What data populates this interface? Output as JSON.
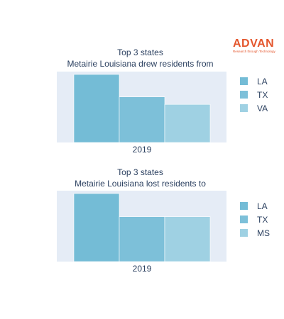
{
  "logo": {
    "text": "ADVAN",
    "tagline": "Research through Technology"
  },
  "chart_data": [
    {
      "type": "bar",
      "title": "Top 3 states",
      "subtitle": "Metairie Louisiana drew residents from",
      "categories": [
        "2019"
      ],
      "series": [
        {
          "name": "LA",
          "values": [
            100
          ],
          "color": "#74bcd6"
        },
        {
          "name": "TX",
          "values": [
            67
          ],
          "color": "#7dc0d9"
        },
        {
          "name": "VA",
          "values": [
            56
          ],
          "color": "#9fd1e3"
        }
      ],
      "legend_position": "right",
      "grid": false
    },
    {
      "type": "bar",
      "title": "Top 3 states",
      "subtitle": "Metairie Louisiana lost residents to",
      "categories": [
        "2019"
      ],
      "series": [
        {
          "name": "LA",
          "values": [
            100
          ],
          "color": "#74bcd6"
        },
        {
          "name": "TX",
          "values": [
            66
          ],
          "color": "#7dc0d9"
        },
        {
          "name": "MS",
          "values": [
            66
          ],
          "color": "#9fd1e3"
        }
      ],
      "legend_position": "right",
      "grid": false
    }
  ]
}
